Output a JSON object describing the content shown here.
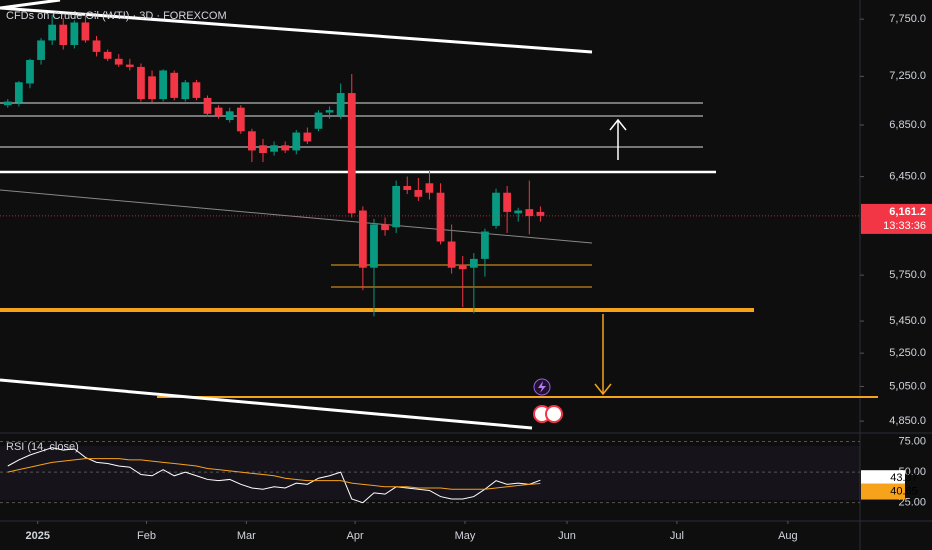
{
  "chart_data": {
    "type": "candlestick",
    "title": "CFDs on Crude Oil (WTI) · 3D · FOREXCOM",
    "log_scale": true,
    "up_color": "#089981",
    "down_color": "#f23645",
    "xlim": [
      -0.7,
      76.8
    ],
    "xticks": [
      {
        "value": 2.7,
        "label": "2025"
      },
      {
        "value": 12.5,
        "label": "Feb"
      },
      {
        "value": 21.5,
        "label": "Mar"
      },
      {
        "value": 31.3,
        "label": "Apr"
      },
      {
        "value": 41.2,
        "label": "May"
      },
      {
        "value": 50.4,
        "label": "Jun"
      },
      {
        "value": 60.3,
        "label": "Jul"
      },
      {
        "value": 70.3,
        "label": "Aug"
      }
    ],
    "ylim": [
      4800,
      7925
    ],
    "yticks": [
      {
        "value": 7750,
        "label": "7,750.0"
      },
      {
        "value": 7250,
        "label": "7,250.0"
      },
      {
        "value": 6850,
        "label": "6,850.0"
      },
      {
        "value": 6450,
        "label": "6,450.0"
      },
      {
        "value": 5750,
        "label": "5,750.0"
      },
      {
        "value": 5450,
        "label": "5,450.0"
      },
      {
        "value": 5250,
        "label": "5,250.0"
      },
      {
        "value": 5050,
        "label": "5,050.0"
      },
      {
        "value": 4850,
        "label": "4,850.0"
      }
    ],
    "open": [
      7010,
      7030,
      7190,
      7390,
      7560,
      7700,
      7520,
      7720,
      7560,
      7460,
      7400,
      7350,
      7330,
      7250,
      7060,
      7280,
      7060,
      7200,
      7070,
      6990,
      6890,
      6990,
      6800,
      6690,
      6640,
      6690,
      6650,
      6790,
      6820,
      6950,
      6930,
      7110,
      6200,
      5800,
      6100,
      6080,
      6380,
      6350,
      6400,
      6330,
      5980,
      5820,
      5800,
      5860,
      6090,
      6330,
      6180,
      6210,
      6190
    ],
    "high": [
      7060,
      7210,
      7400,
      7580,
      7790,
      7760,
      7740,
      7800,
      7600,
      7480,
      7440,
      7400,
      7360,
      7300,
      7310,
      7300,
      7220,
      7220,
      7090,
      7010,
      6990,
      7010,
      6820,
      6740,
      6720,
      6720,
      6810,
      6830,
      6970,
      7000,
      7190,
      7270,
      6230,
      6140,
      6150,
      6420,
      6450,
      6440,
      6500,
      6400,
      6100,
      5880,
      5900,
      6070,
      6360,
      6380,
      6220,
      6420,
      6230
    ],
    "low": [
      6990,
      7000,
      7150,
      7350,
      7520,
      7480,
      7490,
      7540,
      7420,
      7380,
      7330,
      7300,
      7040,
      7030,
      7040,
      7050,
      7040,
      7050,
      6920,
      6900,
      6870,
      6780,
      6560,
      6560,
      6610,
      6630,
      6620,
      6700,
      6800,
      6900,
      6900,
      6150,
      5650,
      5480,
      6020,
      6040,
      6320,
      6270,
      6280,
      5960,
      5760,
      5540,
      5500,
      5740,
      6070,
      6040,
      6120,
      6030,
      6120
    ],
    "close": [
      7040,
      7200,
      7390,
      7560,
      7700,
      7520,
      7720,
      7560,
      7460,
      7400,
      7350,
      7330,
      7060,
      7060,
      7300,
      7070,
      7200,
      7070,
      6940,
      6930,
      6960,
      6800,
      6650,
      6630,
      6690,
      6650,
      6790,
      6720,
      6950,
      6970,
      7110,
      6180,
      5800,
      6100,
      6060,
      6380,
      6350,
      6300,
      6330,
      5980,
      5800,
      5790,
      5860,
      6050,
      6330,
      6190,
      6200,
      6160,
      6161.2
    ],
    "last_price": {
      "value": 6161.2,
      "label": "6,161.2"
    },
    "countdown": "13:33:36",
    "rsi": {
      "title": "RSI (14, close)",
      "ylim": [
        10,
        82
      ],
      "yticks": [
        {
          "value": 75,
          "label": "75.00"
        },
        {
          "value": 50,
          "label": "50.00"
        },
        {
          "value": 25,
          "label": "25.00"
        }
      ],
      "series": [
        {
          "color": "#ffffff",
          "values": [
            55,
            60,
            64,
            67,
            70,
            68,
            69,
            62,
            58,
            57,
            55,
            54,
            48,
            47,
            52,
            47,
            50,
            47,
            44,
            43,
            44,
            40,
            37,
            36,
            38,
            37,
            41,
            40,
            45,
            47,
            50,
            28,
            25,
            33,
            32,
            38,
            37,
            36,
            35,
            30,
            28,
            28,
            30,
            36,
            43,
            40,
            41,
            40,
            43.37
          ]
        },
        {
          "color": "#f7a21b",
          "values": [
            50,
            52,
            54,
            56,
            58,
            59,
            60,
            61,
            61,
            61,
            61,
            60,
            60,
            59,
            58,
            57,
            56,
            55,
            53,
            52,
            51,
            50,
            49,
            48,
            47,
            45,
            44,
            43,
            43,
            43,
            43,
            41,
            40,
            39,
            38,
            38,
            38,
            37,
            37,
            37,
            36,
            36,
            36,
            36,
            37,
            38,
            39,
            40,
            40.65
          ]
        }
      ]
    }
  }
}
